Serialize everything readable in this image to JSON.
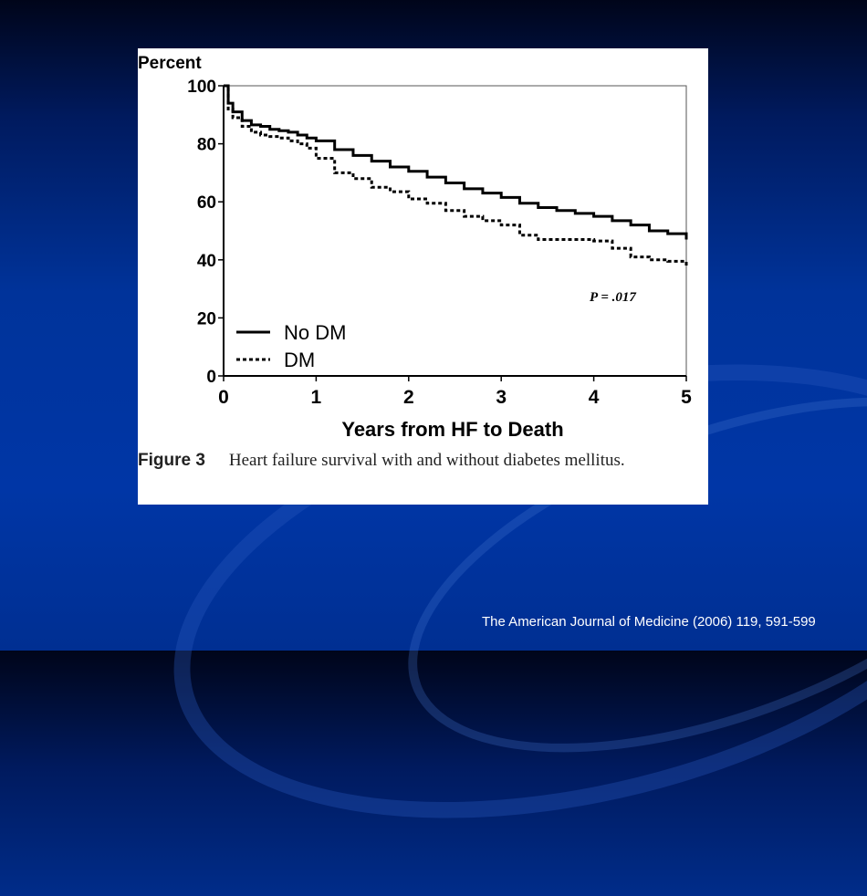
{
  "slide": {
    "citation": "The American Journal of Medicine (2006) 119, 591-599"
  },
  "figure": {
    "label": "Figure 3",
    "caption": "Heart failure survival with and without diabetes mellitus."
  },
  "colors": {
    "background": "#0036a6",
    "line": "#000000",
    "panel": "#ffffff"
  },
  "chart_data": {
    "type": "line",
    "title": "",
    "xlabel": "Years from HF to Death",
    "ylabel": "Percent",
    "xlim": [
      0,
      5
    ],
    "ylim": [
      0,
      100
    ],
    "xticks": [
      "0",
      "1",
      "2",
      "3",
      "4",
      "5"
    ],
    "yticks": [
      "0",
      "20",
      "40",
      "60",
      "80",
      "100"
    ],
    "annotation": "P = .017",
    "legend_position": "bottom-left",
    "series": [
      {
        "name": "No DM",
        "style": "solid",
        "x": [
          0,
          0.05,
          0.1,
          0.2,
          0.3,
          0.4,
          0.5,
          0.6,
          0.7,
          0.8,
          0.9,
          1.0,
          1.2,
          1.4,
          1.6,
          1.8,
          2.0,
          2.2,
          2.4,
          2.6,
          2.8,
          3.0,
          3.2,
          3.4,
          3.6,
          3.8,
          4.0,
          4.2,
          4.4,
          4.6,
          4.8,
          5.0
        ],
        "values": [
          100,
          94,
          91,
          88,
          86.5,
          86,
          85,
          84.5,
          84,
          83,
          82,
          81,
          78,
          76,
          74,
          72,
          70.5,
          68.5,
          66.5,
          64.5,
          63,
          61.5,
          59.5,
          58,
          57,
          56,
          55,
          53.5,
          52,
          50,
          49,
          47
        ]
      },
      {
        "name": "DM",
        "style": "dotted",
        "x": [
          0,
          0.05,
          0.1,
          0.2,
          0.3,
          0.4,
          0.5,
          0.6,
          0.7,
          0.8,
          0.9,
          1.0,
          1.2,
          1.4,
          1.6,
          1.8,
          2.0,
          2.2,
          2.4,
          2.6,
          2.8,
          3.0,
          3.2,
          3.4,
          3.6,
          3.8,
          4.0,
          4.2,
          4.4,
          4.6,
          4.8,
          5.0
        ],
        "values": [
          100,
          92,
          89,
          86,
          84,
          83,
          82.5,
          82,
          81,
          80,
          78.5,
          75,
          70,
          68,
          65,
          63.5,
          61,
          59.5,
          57,
          55,
          53.5,
          52,
          48.5,
          47,
          47,
          47,
          46.5,
          44,
          41,
          40,
          39.5,
          37.5
        ]
      }
    ]
  }
}
